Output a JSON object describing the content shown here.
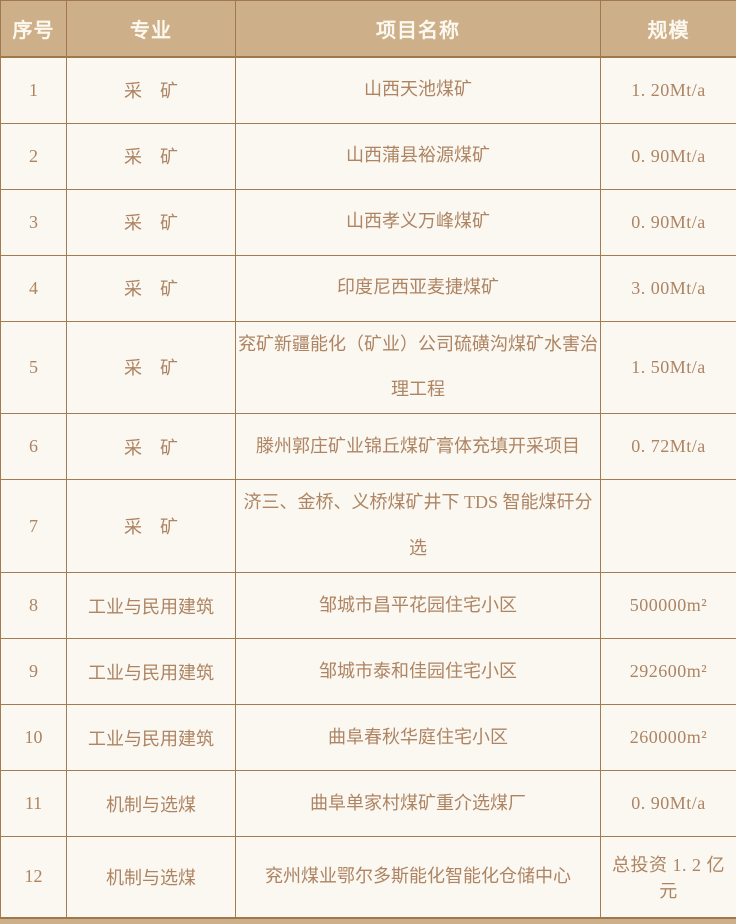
{
  "colors": {
    "header_bg": "#CDB089",
    "header_text": "#FCF8EF",
    "border": "#A57B52",
    "body_bg": "#FAF8F1",
    "body_text": "#AE8463"
  },
  "table": {
    "headers": [
      "序号",
      "专业",
      "项目名称",
      "规模"
    ],
    "rows": [
      {
        "no": "1",
        "specialty": "采　矿",
        "project": "山西天池煤矿",
        "scale": "1. 20Mt/a"
      },
      {
        "no": "2",
        "specialty": "采　矿",
        "project": "山西蒲县裕源煤矿",
        "scale": "0. 90Mt/a"
      },
      {
        "no": "3",
        "specialty": "采　矿",
        "project": "山西孝义万峰煤矿",
        "scale": "0. 90Mt/a"
      },
      {
        "no": "4",
        "specialty": "采　矿",
        "project": "印度尼西亚麦捷煤矿",
        "scale": "3. 00Mt/a"
      },
      {
        "no": "5",
        "specialty": "采　矿",
        "project": "兖矿新疆能化（矿业）公司硫磺沟煤矿水害治理工程",
        "scale": "1. 50Mt/a"
      },
      {
        "no": "6",
        "specialty": "采　矿",
        "project": "滕州郭庄矿业锦丘煤矿膏体充填开采项目",
        "scale": "0. 72Mt/a"
      },
      {
        "no": "7",
        "specialty": "采　矿",
        "project": "济三、金桥、义桥煤矿井下 TDS 智能煤矸分选",
        "scale": ""
      },
      {
        "no": "8",
        "specialty": "工业与民用建筑",
        "project": "邹城市昌平花园住宅小区",
        "scale": "500000m²"
      },
      {
        "no": "9",
        "specialty": "工业与民用建筑",
        "project": "邹城市泰和佳园住宅小区",
        "scale": "292600m²"
      },
      {
        "no": "10",
        "specialty": "工业与民用建筑",
        "project": "曲阜春秋华庭住宅小区",
        "scale": "260000m²"
      },
      {
        "no": "11",
        "specialty": "机制与选煤",
        "project": "曲阜单家村煤矿重介选煤厂",
        "scale": "0. 90Mt/a"
      },
      {
        "no": "12",
        "specialty": "机制与选煤",
        "project": "兖州煤业鄂尔多斯能化智能化仓储中心",
        "scale": "总投资 1. 2 亿元"
      }
    ]
  }
}
